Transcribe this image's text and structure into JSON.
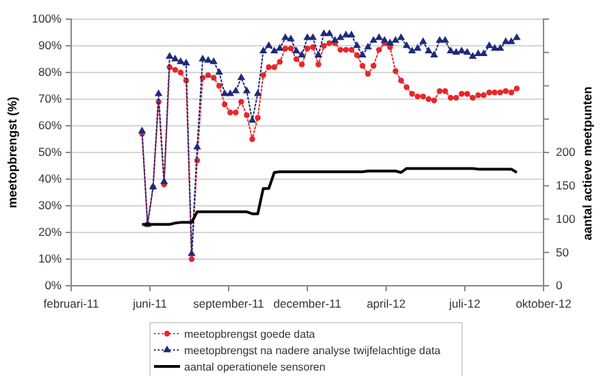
{
  "chart_data": {
    "type": "line",
    "ylabel": "meetopbrengst (%)",
    "y2label": "aantal actieve meetpunten",
    "x": [
      "2011-05-28",
      "2011-06-04",
      "2011-06-11",
      "2011-06-18",
      "2011-06-25",
      "2011-07-02",
      "2011-07-09",
      "2011-07-16",
      "2011-07-23",
      "2011-07-30",
      "2011-08-06",
      "2011-08-13",
      "2011-08-20",
      "2011-08-27",
      "2011-09-03",
      "2011-09-10",
      "2011-09-17",
      "2011-09-24",
      "2011-10-01",
      "2011-10-08",
      "2011-10-15",
      "2011-10-22",
      "2011-10-29",
      "2011-11-05",
      "2011-11-12",
      "2011-11-19",
      "2011-11-26",
      "2011-12-03",
      "2011-12-10",
      "2011-12-17",
      "2011-12-24",
      "2011-12-31",
      "2012-01-07",
      "2012-01-14",
      "2012-01-21",
      "2012-01-28",
      "2012-02-04",
      "2012-02-11",
      "2012-02-18",
      "2012-02-25",
      "2012-03-03",
      "2012-03-10",
      "2012-03-17",
      "2012-03-24",
      "2012-03-31",
      "2012-04-07",
      "2012-04-14",
      "2012-04-21",
      "2012-04-28",
      "2012-05-05",
      "2012-05-12",
      "2012-05-19",
      "2012-05-26",
      "2012-06-02",
      "2012-06-09",
      "2012-06-16",
      "2012-06-23",
      "2012-06-30",
      "2012-07-07",
      "2012-07-14",
      "2012-07-21",
      "2012-07-28",
      "2012-08-04",
      "2012-08-11",
      "2012-08-18",
      "2012-08-25",
      "2012-09-01",
      "2012-09-08",
      "2012-09-15"
    ],
    "series": [
      {
        "name": "meetopbrengst goede data",
        "color": "#e8262a",
        "marker": "circle",
        "line_style": "dotted",
        "values": [
          57,
          23,
          37,
          69,
          38,
          82,
          81,
          80,
          77,
          10,
          47,
          78,
          79,
          78,
          75,
          68,
          65,
          65,
          69,
          64,
          55,
          63,
          79,
          82,
          82,
          84,
          89,
          89,
          85,
          83,
          89,
          89.5,
          83,
          90,
          91,
          91,
          88.5,
          88.5,
          88.5,
          86.5,
          82.5,
          79.5,
          82.5,
          88.5,
          91,
          89.5,
          80.5,
          77,
          74.5,
          72,
          71,
          71,
          70,
          69.5,
          73,
          73,
          70.5,
          70.5,
          72,
          72,
          70.5,
          71.5,
          71.5,
          72.5,
          72.5,
          72.5,
          73,
          72.5,
          74
        ]
      },
      {
        "name": "meetopbrengst na nadere analyse twijfelachtige data",
        "color": "#1f2a7a",
        "marker": "triangle",
        "line_style": "dotted",
        "values": [
          58,
          23,
          37,
          72,
          39,
          86,
          85,
          84,
          83.5,
          12,
          52,
          85,
          84.5,
          84,
          80,
          72,
          72,
          73,
          78,
          73,
          62,
          72,
          88,
          90,
          88,
          89,
          93,
          92.5,
          88,
          86.5,
          93,
          93,
          86.5,
          94.5,
          94.5,
          92,
          93,
          94,
          94,
          90,
          86.5,
          89.5,
          92,
          93,
          92,
          91,
          92,
          93,
          90,
          88,
          89,
          91.5,
          88,
          86.5,
          92,
          92,
          88,
          87.5,
          88,
          87.5,
          86,
          87,
          87,
          90,
          89,
          89,
          91.5,
          91.5,
          93
        ]
      },
      {
        "name": "aantal operationele sensoren",
        "color": "#000000",
        "marker": "none",
        "line_style": "solid",
        "axis": "y2",
        "values": [
          92,
          92,
          92,
          92,
          92,
          92,
          94,
          95,
          95,
          95,
          111,
          111,
          111,
          111,
          111,
          111,
          111,
          111,
          111,
          111,
          108,
          108,
          146,
          146,
          170,
          171,
          171,
          171,
          171,
          171,
          171,
          171,
          171,
          171,
          171,
          171,
          171,
          171,
          171,
          171,
          171,
          172,
          172,
          172,
          172,
          172,
          172,
          170,
          176,
          176,
          176,
          176,
          176,
          176,
          176,
          176,
          176,
          176,
          176,
          176,
          176,
          175,
          175,
          175,
          175,
          175,
          175,
          175,
          170
        ]
      }
    ],
    "xlim": [
      "2011-02-27",
      "2012-10-19"
    ],
    "xticks": [
      {
        "value": "2011-02-27",
        "label": "februari-11"
      },
      {
        "value": "2011-06-07",
        "label": "juni-11"
      },
      {
        "value": "2011-09-15",
        "label": "september-11"
      },
      {
        "value": "2011-12-24",
        "label": "december-11"
      },
      {
        "value": "2012-04-02",
        "label": "april-12"
      },
      {
        "value": "2012-07-11",
        "label": "juli-12"
      },
      {
        "value": "2012-10-19",
        "label": "oktober-12"
      }
    ],
    "ylim": [
      0,
      100
    ],
    "yticks": [
      {
        "value": 0,
        "label": "0%"
      },
      {
        "value": 10,
        "label": "10%"
      },
      {
        "value": 20,
        "label": "20%"
      },
      {
        "value": 30,
        "label": "30%"
      },
      {
        "value": 40,
        "label": "40%"
      },
      {
        "value": 50,
        "label": "50%"
      },
      {
        "value": 60,
        "label": "60%"
      },
      {
        "value": 70,
        "label": "70%"
      },
      {
        "value": 80,
        "label": "80%"
      },
      {
        "value": 90,
        "label": "90%"
      },
      {
        "value": 100,
        "label": "100%"
      }
    ],
    "y2lim": [
      0,
      400
    ],
    "y2ticks": [
      0,
      50,
      100,
      150,
      200,
      {
        "value": 250,
        "label": null
      },
      {
        "value": 300,
        "label": null
      },
      {
        "value": 350,
        "label": null
      },
      {
        "value": 400,
        "label": null
      }
    ],
    "grid": "y",
    "legend": "bottom"
  }
}
